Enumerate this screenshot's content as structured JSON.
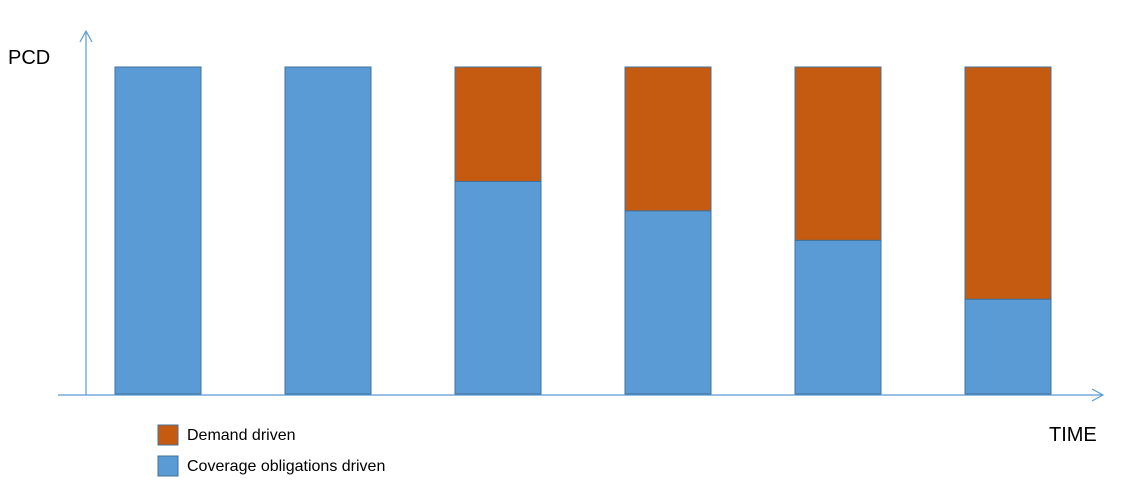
{
  "chart_data": {
    "type": "bar",
    "stacked": true,
    "ylabel": "PCD",
    "xlabel": "TIME",
    "categories": [
      "",
      "",
      "",
      "",
      "",
      ""
    ],
    "ylim": [
      0,
      1
    ],
    "series": [
      {
        "name": "Coverage obligations driven",
        "color": "#5b9bd5",
        "values": [
          1.0,
          1.0,
          0.65,
          0.56,
          0.47,
          0.29
        ]
      },
      {
        "name": "Demand driven",
        "color": "#c55a11",
        "values": [
          0.0,
          0.0,
          0.35,
          0.44,
          0.53,
          0.71
        ]
      }
    ],
    "legend": {
      "placement": "bottom-left",
      "entries": [
        {
          "label": "Demand driven",
          "color": "#c55a11"
        },
        {
          "label": "Coverage obligations driven",
          "color": "#5b9bd5"
        }
      ]
    },
    "axis_color": "#5b9bd5",
    "grid": false
  }
}
